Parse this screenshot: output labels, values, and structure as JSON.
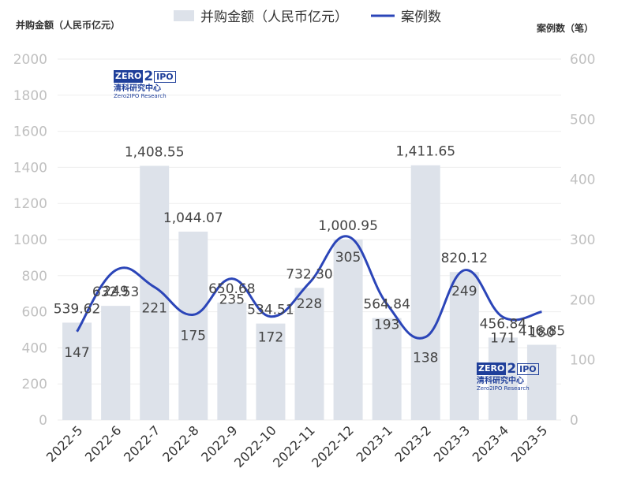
{
  "chart_data": {
    "type": "bar+line",
    "categories": [
      "2022-5",
      "2022-6",
      "2022-7",
      "2022-8",
      "2022-9",
      "2022-10",
      "2022-11",
      "2022-12",
      "2023-1",
      "2023-2",
      "2023-3",
      "2023-4",
      "2023-5"
    ],
    "series": [
      {
        "name": "并购金额（人民币亿元）",
        "type": "bar",
        "axis": "left",
        "color": "#dde2ea",
        "values": [
          539.62,
          632.53,
          1408.55,
          1044.07,
          650.68,
          534.51,
          732.3,
          1000.95,
          564.84,
          1411.65,
          820.12,
          456.84,
          416.85
        ],
        "labels": [
          "539.62",
          "632.53",
          "1,408.55",
          "1,044.07",
          "650.68",
          "534.51",
          "732.30",
          "1,000.95",
          "564.84",
          "1,411.65",
          "820.12",
          "456.84",
          "416.85"
        ]
      },
      {
        "name": "案例数",
        "type": "line",
        "axis": "right",
        "color": "#2b45b8",
        "values": [
          147,
          249,
          221,
          175,
          235,
          172,
          228,
          305,
          193,
          138,
          249,
          171,
          180
        ],
        "labels": [
          "147",
          "249",
          "221",
          "175",
          "235",
          "172",
          "228",
          "305",
          "193",
          "138",
          "249",
          "171",
          "180"
        ]
      }
    ],
    "ylabel_left": "并购金额（人民币亿元）",
    "ylabel_right": "案例数（笔）",
    "ylim_left": [
      0,
      2000
    ],
    "yticks_left": [
      "0",
      "200",
      "400",
      "600",
      "800",
      "1000",
      "1200",
      "1400",
      "1600",
      "1800",
      "2000"
    ],
    "ylim_right": [
      0,
      600
    ],
    "yticks_right": [
      "0",
      "100",
      "200",
      "300",
      "400",
      "500",
      "600"
    ],
    "legend_position": "top-center",
    "grid": true
  },
  "logo": {
    "zero": "ZERO",
    "two": "2",
    "ipo": "IPO",
    "cn": "清科研究中心",
    "en": "Zero2IPO Research"
  }
}
